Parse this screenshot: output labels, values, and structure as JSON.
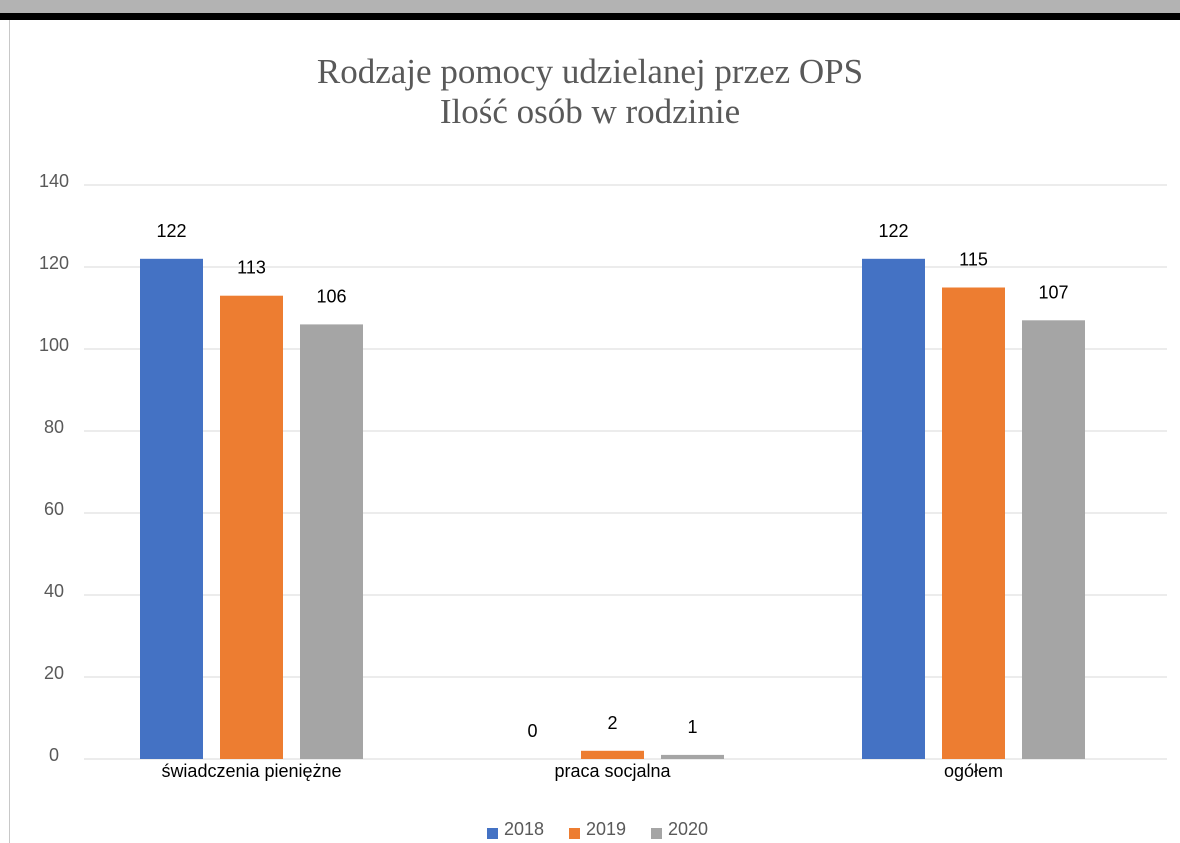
{
  "chart_data": {
    "type": "bar",
    "title": "Rodzaje pomocy udzielanej przez OPS",
    "subtitle": "Ilość osób w rodzinie",
    "xlabel": "",
    "ylabel": "",
    "categories": [
      "świadczenia pieniężne",
      "praca socjalna",
      "ogółem"
    ],
    "series": [
      {
        "name": "2018",
        "values": [
          122,
          0,
          122
        ],
        "color": "#4472c4"
      },
      {
        "name": "2019",
        "values": [
          113,
          2,
          115
        ],
        "color": "#ed7d31"
      },
      {
        "name": "2020",
        "values": [
          106,
          1,
          107
        ],
        "color": "#a5a5a5"
      }
    ],
    "ylim": [
      0,
      140
    ],
    "yticks": [
      "0",
      "20",
      "40",
      "60",
      "80",
      "100",
      "120",
      "140"
    ],
    "grid": true,
    "legend_position": "bottom",
    "data_labels": true
  }
}
